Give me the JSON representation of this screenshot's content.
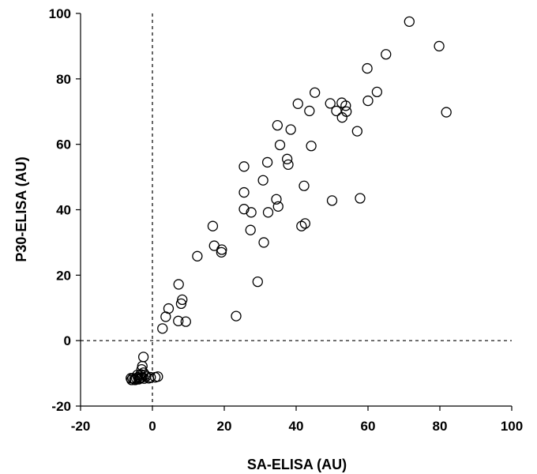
{
  "chart_data": {
    "type": "scatter",
    "title": "",
    "xlabel": "SA-ELISA (AU)",
    "ylabel": "P30-ELISA (AU)",
    "xlim": [
      -20,
      100
    ],
    "ylim": [
      -20,
      100
    ],
    "xticks": [
      -20,
      0,
      20,
      40,
      60,
      80,
      100
    ],
    "yticks": [
      -20,
      0,
      20,
      40,
      60,
      80,
      100
    ],
    "x_tick_labels": [
      "-20",
      "0",
      "20",
      "40",
      "60",
      "80",
      "100"
    ],
    "y_tick_labels": [
      "-20",
      "0",
      "20",
      "40",
      "60",
      "80",
      "100"
    ],
    "reference_lines": {
      "x": 0,
      "y": 0,
      "style": "dashed"
    },
    "grid": false,
    "marker": "open-circle",
    "points": [
      [
        71.5,
        97.5
      ],
      [
        79.8,
        90
      ],
      [
        65,
        87.5
      ],
      [
        59.8,
        83.2
      ],
      [
        81.8,
        69.8
      ],
      [
        62.5,
        76
      ],
      [
        60,
        73.3
      ],
      [
        45.2,
        75.8
      ],
      [
        40.5,
        72.4
      ],
      [
        49.5,
        72.5
      ],
      [
        52.7,
        72.7
      ],
      [
        53.8,
        71.8
      ],
      [
        51.2,
        70.2
      ],
      [
        54,
        70
      ],
      [
        43.7,
        70.2
      ],
      [
        52.8,
        68.2
      ],
      [
        34.8,
        65.8
      ],
      [
        38.5,
        64.5
      ],
      [
        57,
        64
      ],
      [
        35.5,
        59.8
      ],
      [
        44.2,
        59.5
      ],
      [
        37.5,
        55.5
      ],
      [
        37.8,
        53.8
      ],
      [
        32,
        54.5
      ],
      [
        25.5,
        53.2
      ],
      [
        30.8,
        49
      ],
      [
        42.2,
        47.3
      ],
      [
        25.5,
        45.3
      ],
      [
        34.5,
        43.2
      ],
      [
        50,
        42.8
      ],
      [
        57.8,
        43.5
      ],
      [
        35,
        41
      ],
      [
        25.5,
        40.2
      ],
      [
        27.5,
        39.2
      ],
      [
        32.2,
        39.2
      ],
      [
        41.5,
        35
      ],
      [
        42.5,
        35.8
      ],
      [
        16.8,
        35
      ],
      [
        27.3,
        33.8
      ],
      [
        31,
        30
      ],
      [
        17.2,
        29
      ],
      [
        19.3,
        27.8
      ],
      [
        19.2,
        27
      ],
      [
        12.5,
        25.8
      ],
      [
        29.3,
        18
      ],
      [
        7.3,
        17.2
      ],
      [
        8.3,
        12.5
      ],
      [
        8,
        11.3
      ],
      [
        4.5,
        9.8
      ],
      [
        3.7,
        7.3
      ],
      [
        23.3,
        7.5
      ],
      [
        7.2,
        6
      ],
      [
        9.3,
        5.8
      ],
      [
        2.8,
        3.7
      ],
      [
        -2.5,
        -5
      ],
      [
        -2.8,
        -7.8
      ],
      [
        -3,
        -8.8
      ],
      [
        -2.5,
        -9.8
      ],
      [
        -3.3,
        -10.3
      ],
      [
        -4.2,
        -10.5
      ],
      [
        -2,
        -10.5
      ],
      [
        -1.8,
        -11
      ],
      [
        -0.5,
        -11.2
      ],
      [
        1.5,
        -11
      ],
      [
        0.8,
        -11.2
      ],
      [
        -1,
        -11.5
      ],
      [
        -2.8,
        -11.2
      ],
      [
        -3.5,
        -11.5
      ],
      [
        -4,
        -11.2
      ],
      [
        -4.5,
        -11.5
      ],
      [
        -5,
        -11.8
      ],
      [
        -5.5,
        -11.5
      ],
      [
        -5.8,
        -12
      ],
      [
        -6,
        -11.5
      ],
      [
        -3.8,
        -11.8
      ],
      [
        -4.8,
        -12
      ],
      [
        -3.2,
        -11.3
      ],
      [
        -2.3,
        -11.6
      ]
    ]
  }
}
